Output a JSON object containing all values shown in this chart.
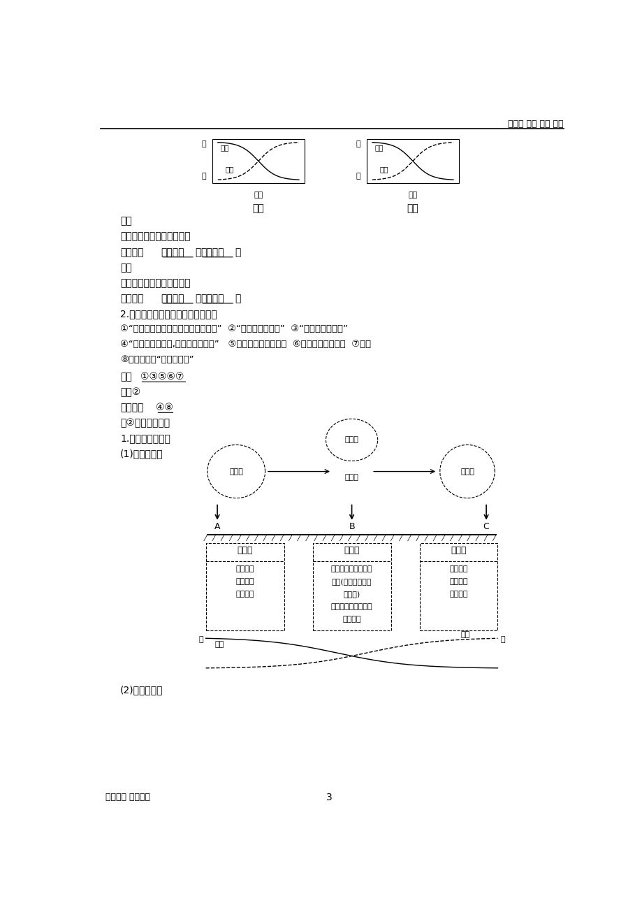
{
  "page_header_right": "小中高 精品 教案 试卷",
  "page_footer_left": "制作不易 推荐下载",
  "page_footer_center": "3",
  "background_color": "#ffffff",
  "text_color": "#000000",
  "line1": "冷锋",
  "line2": "过境前：气温高，气压低。",
  "line3_pre": "过境后：",
  "line3_u1": "气温降低",
  "line3_mid": "，",
  "line3_u2": "气压升高",
  "line3_post": "。",
  "line4": "暖锋",
  "line5": "过境前：气温低，气压高。",
  "line6_pre": "过境后：",
  "line6_u1": "气温升高",
  "line6_mid": "，",
  "line6_u2": "气压降低",
  "line6_post": "。",
  "line7": "2.对以下现象的天气系统进行归类。",
  "line8": "①“忽如一夜春风来，千树万树梨花开”  ②“一场春雨一场暖”  ③“一场秋雨一场寒”",
  "line9": "④“黄梅时节家家雨,青草池塘处处蛙”   ⑤我国北方夏季的暴雨  ⑥冬春季节的沙尘暴  ⑦寒潮",
  "line10": "⑧贵阳冬半年“天无三日晴”",
  "line11_pre": "冷锋",
  "line11_u": "①③⑤⑥⑦",
  "line12": "暖锋②",
  "line13_pre": "准静止锋",
  "line13_u": "④⑧",
  "line14": "第②步：名师精讲",
  "line15": "1.图解锋面与天气",
  "line16": "(1)冷锋与天气",
  "line17": "(2)暖锋与天气",
  "box_a_title": "过境前",
  "box_a_lines": [
    "气温较高",
    "气压较低",
    "天气晴朗"
  ],
  "box_b_title": "过境时",
  "box_b_lines": [
    "阴天、下雨、刮风、",
    "降温(降水强度大、",
    "历时短)",
    "雨区：集中在锋后、",
    "范围狭窄"
  ],
  "box_c_title": "过境后",
  "box_c_lines": [
    "气温降低",
    "气压升高",
    "天气转晴"
  ],
  "label_warm_air": "暖气团",
  "label_cold_air": "冷气团",
  "label_temp": "气温",
  "label_pres": "气压",
  "label_wen": "温",
  "label_ya": "压",
  "chart_left_solid": "气温",
  "chart_left_dashed": "气压",
  "chart_right_solid": "气压",
  "chart_right_dashed": "气温",
  "chart_high": "高",
  "chart_low": "低",
  "chart_time": "时间",
  "chart_left_title": "冷锋",
  "chart_right_title": "暖锋"
}
